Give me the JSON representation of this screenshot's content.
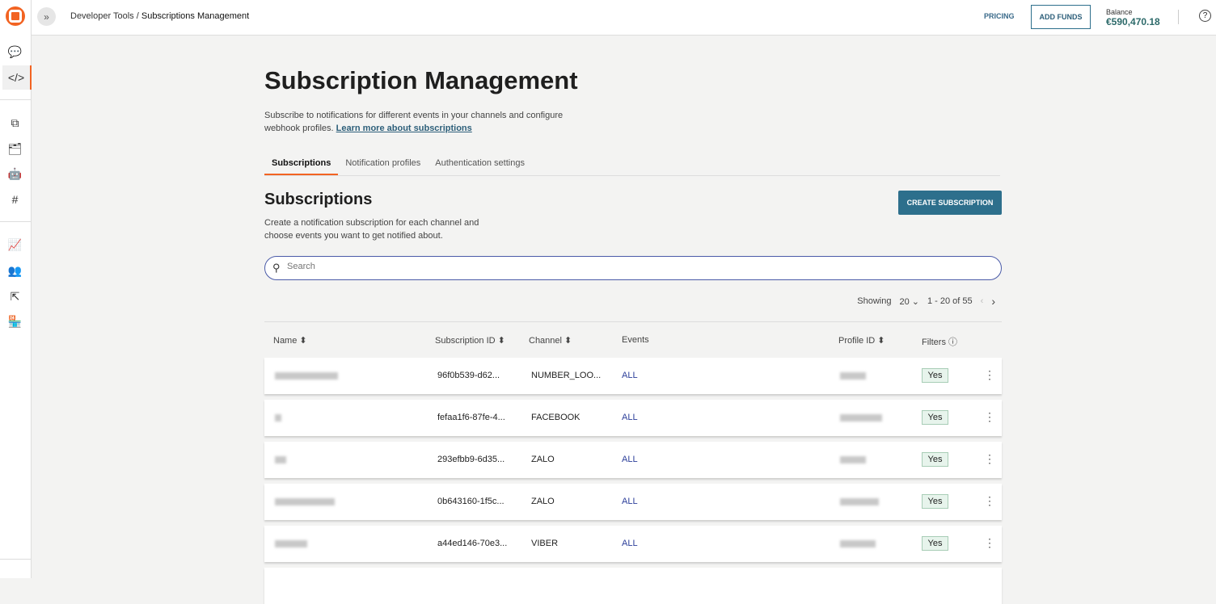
{
  "topbar": {
    "breadcrumb_parent": "Developer Tools",
    "breadcrumb_sep": " / ",
    "breadcrumb_current": "Subscriptions Management",
    "pricing": "PRICING",
    "add_funds": "ADD FUNDS",
    "balance_label": "Balance",
    "balance_value": "€590,470.18"
  },
  "page": {
    "title": "Subscription Management",
    "description": "Subscribe to notifications for different events in your channels and configure webhook profiles.",
    "learn_more": "Learn more about subscriptions"
  },
  "tabs": [
    {
      "label": "Subscriptions",
      "active": true
    },
    {
      "label": "Notification profiles"
    },
    {
      "label": "Authentication settings"
    }
  ],
  "section": {
    "title": "Subscriptions",
    "description": "Create a notification subscription for each channel and choose events you want to get notified about.",
    "create_button": "CREATE SUBSCRIPTION"
  },
  "search": {
    "placeholder": "Search"
  },
  "pager": {
    "showing_label": "Showing",
    "page_size": "20",
    "range": "1 - 20 of 55"
  },
  "columns": {
    "name": "Name",
    "subscription_id": "Subscription ID",
    "channel": "Channel",
    "events": "Events",
    "profile_id": "Profile ID",
    "filters": "Filters"
  },
  "rows": [
    {
      "subscription_id": "96f0b539-d62...",
      "channel": "NUMBER_LOO...",
      "events": "ALL",
      "filters": "Yes"
    },
    {
      "subscription_id": "fefaa1f6-87fe-4...",
      "channel": "FACEBOOK",
      "events": "ALL",
      "filters": "Yes"
    },
    {
      "subscription_id": "293efbb9-6d35...",
      "channel": "ZALO",
      "events": "ALL",
      "filters": "Yes"
    },
    {
      "subscription_id": "0b643160-1f5c...",
      "channel": "ZALO",
      "events": "ALL",
      "filters": "Yes"
    },
    {
      "subscription_id": "a44ed146-70e3...",
      "channel": "VIBER",
      "events": "ALL",
      "filters": "Yes"
    }
  ],
  "colors": {
    "accent": "#f26322",
    "primary": "#2d6f8c"
  }
}
